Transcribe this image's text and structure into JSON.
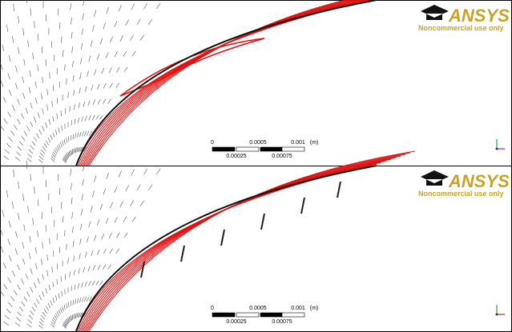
{
  "panels": [
    {
      "logo": "ANSYS",
      "notice": "Noncommercial use only",
      "scale": {
        "top": [
          "0",
          "0.0005",
          "0.001"
        ],
        "unit": "(m)",
        "bottom": [
          "0.00025",
          "0.00075"
        ]
      }
    },
    {
      "logo": "ANSYS",
      "notice": "Noncommercial use only",
      "scale": {
        "top": [
          "0",
          "0.0005",
          "0.001"
        ],
        "unit": "(m)",
        "bottom": [
          "0.00025",
          "0.00075"
        ]
      }
    }
  ]
}
